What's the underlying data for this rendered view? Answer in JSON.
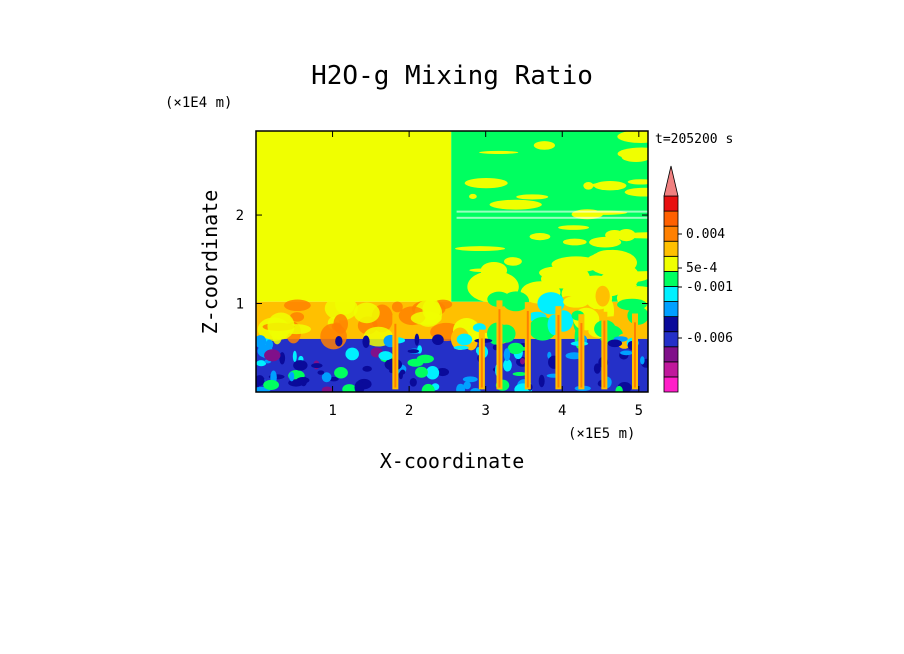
{
  "chart_data": {
    "type": "heatmap",
    "title": "H2O-g Mixing Ratio",
    "xlabel": "X-coordinate",
    "ylabel": "Z-coordinate",
    "x_unit": "(×1E5 m)",
    "y_unit": "(×1E4 m)",
    "time_label": "t=205200 s",
    "x_ticks": [
      "1",
      "2",
      "3",
      "4",
      "5"
    ],
    "y_ticks": [
      "1",
      "2"
    ],
    "xlim": [
      0,
      5.12
    ],
    "ylim": [
      0,
      2.95
    ],
    "colorbar": {
      "levels": [
        {
          "color": "#ff1ec8"
        },
        {
          "color": "#c0189c"
        },
        {
          "color": "#80108a"
        },
        {
          "color": "#2430c8"
        },
        {
          "color": "#0a0a9a"
        },
        {
          "color": "#00a0ff"
        },
        {
          "color": "#00f0ff"
        },
        {
          "color": "#00ff60"
        },
        {
          "color": "#f0ff00"
        },
        {
          "color": "#ffc000"
        },
        {
          "color": "#ff8000"
        },
        {
          "color": "#ff6000"
        },
        {
          "color": "#e81010"
        },
        {
          "color": "#f08080"
        }
      ],
      "labels": [
        "0.004",
        "5e-4",
        "-0.001",
        "-0.006"
      ]
    },
    "regions": [
      {
        "name": "upper-left uniform",
        "x": [
          0,
          2.55
        ],
        "z": [
          1.02,
          2.95
        ],
        "color": "#f0ff00"
      },
      {
        "name": "upper-right mixed",
        "x": [
          2.55,
          5.12
        ],
        "z": [
          1.02,
          2.95
        ],
        "color": "#00ff60"
      },
      {
        "name": "middle orange layer",
        "x": [
          0,
          5.12
        ],
        "z": [
          0.6,
          1.02
        ],
        "color": "#ffc000"
      },
      {
        "name": "lower blue layer",
        "x": [
          0,
          5.12
        ],
        "z": [
          0,
          0.6
        ],
        "color": "#2430c8"
      }
    ]
  }
}
